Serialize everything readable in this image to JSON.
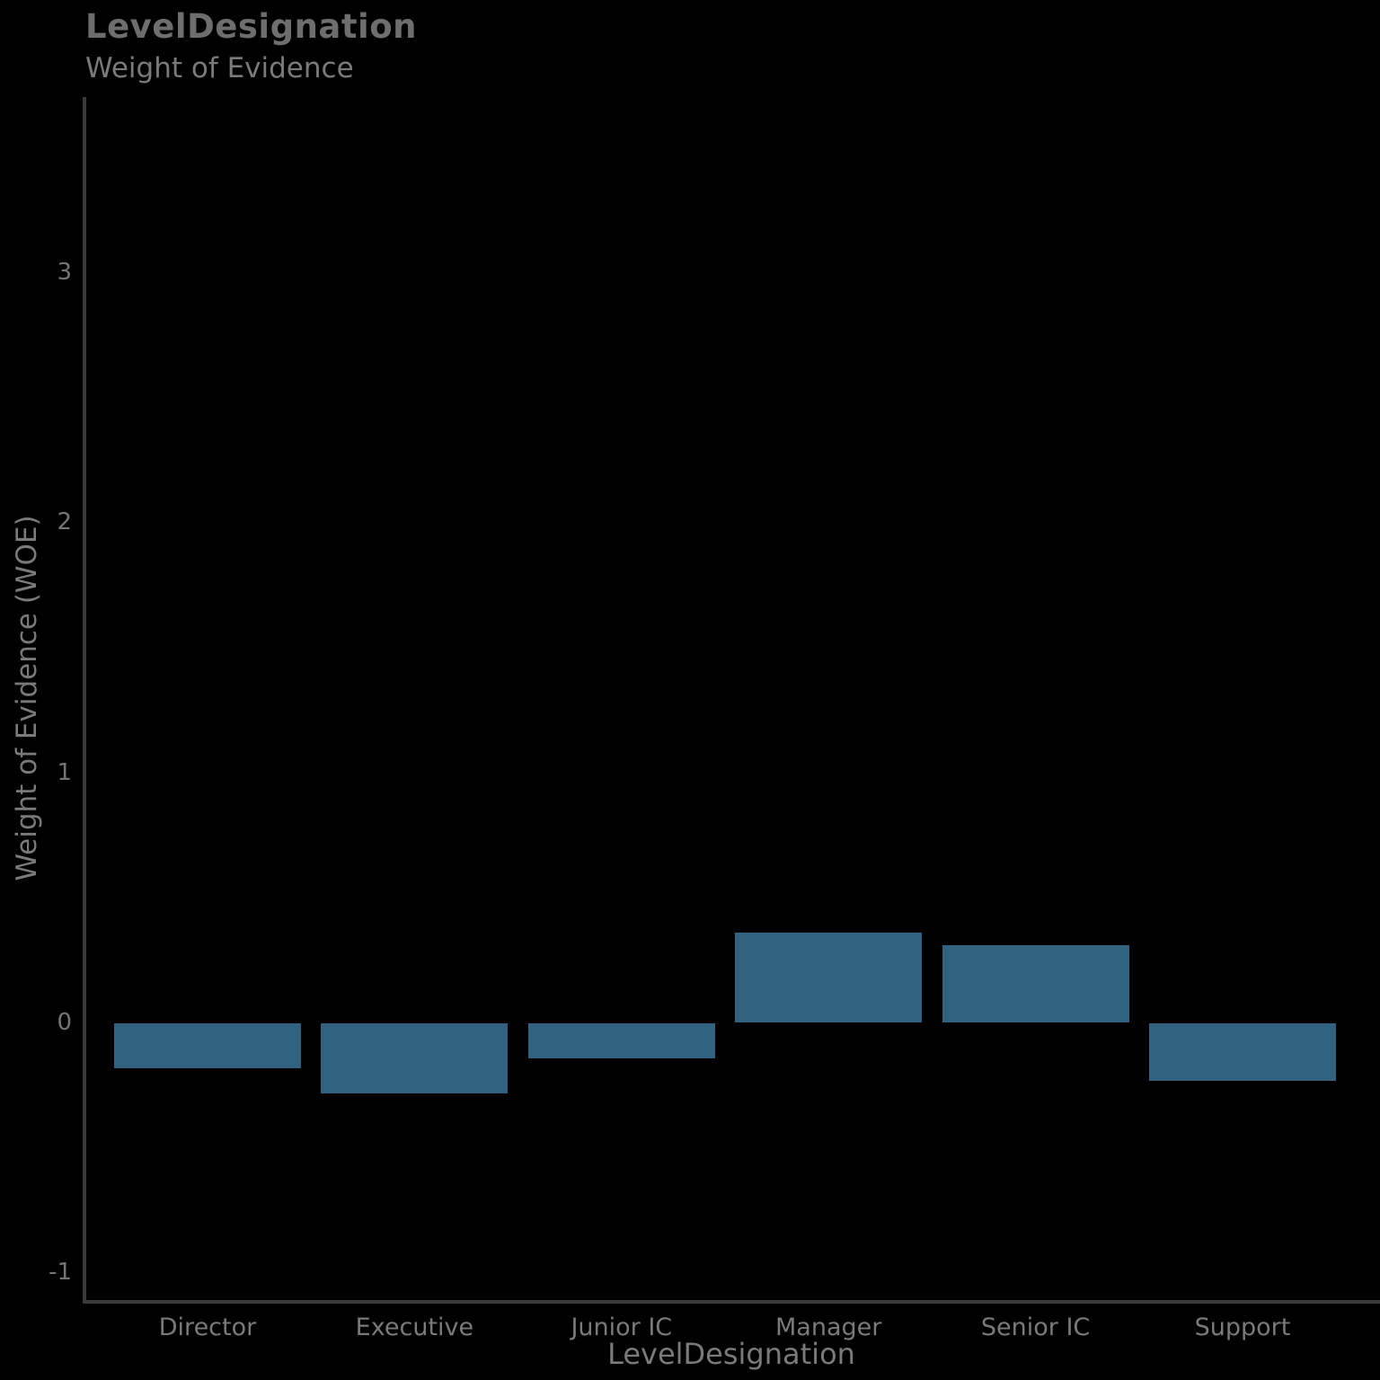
{
  "header": {
    "title": "LevelDesignation",
    "subtitle": "Weight of Evidence"
  },
  "colors": {
    "background": "#000000",
    "bar": "#31627F",
    "axis_line": "#3b3b3b",
    "title_text": "#6e6e6e",
    "label_text": "#7a7a7a",
    "tick_text": "#757575"
  },
  "chart_data": {
    "type": "bar",
    "title": "LevelDesignation",
    "subtitle": "Weight of Evidence",
    "xlabel": "LevelDesignation",
    "ylabel": "Weight of Evidence (WOE)",
    "categories": [
      "Director",
      "Executive",
      "Junior IC",
      "Manager",
      "Senior IC",
      "Support"
    ],
    "values": [
      -0.18,
      -0.28,
      -0.14,
      0.36,
      0.31,
      -0.23
    ],
    "ylim": [
      -1.11,
      3.7
    ],
    "yticks": [
      -1,
      0,
      1,
      2,
      3
    ],
    "grid": false,
    "legend": "none",
    "bar_color": "#31627F"
  }
}
